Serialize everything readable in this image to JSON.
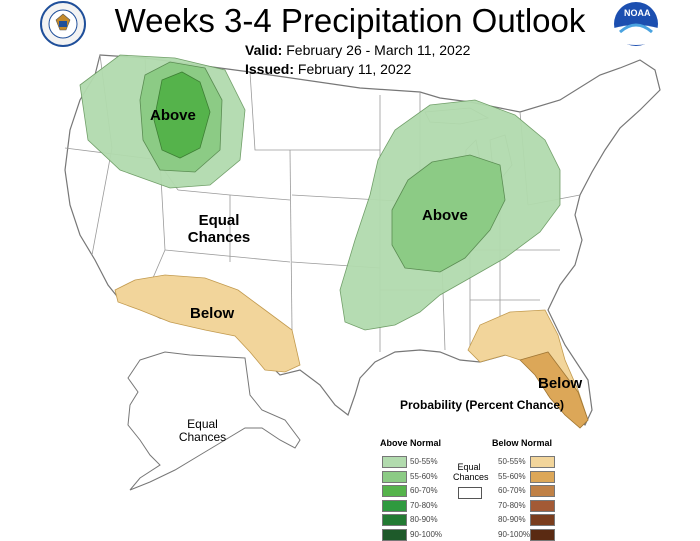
{
  "header": {
    "title": "Weeks 3-4 Precipitation Outlook",
    "valid_label": "Valid:",
    "valid_value": "February 26 - March 11, 2022",
    "issued_label": "Issued:",
    "issued_value": "February 11, 2022"
  },
  "logos": {
    "left": "department-of-commerce-seal-icon",
    "right_text": "NOAA"
  },
  "map_labels": {
    "above_nw": "Above",
    "above_mw": "Above",
    "equal_west_1": "Equal",
    "equal_west_2": "Chances",
    "below_sw": "Below",
    "below_se": "Below",
    "equal_ak_1": "Equal",
    "equal_ak_2": "Chances"
  },
  "legend": {
    "title": "Probability (Percent Chance)",
    "above_header": "Above Normal",
    "below_header": "Below Normal",
    "equal_1": "Equal",
    "equal_2": "Chances",
    "above": [
      {
        "label": "50-55%",
        "color": "#b2dbae"
      },
      {
        "label": "55-60%",
        "color": "#8ccb85"
      },
      {
        "label": "60-70%",
        "color": "#55b34b"
      },
      {
        "label": "70-80%",
        "color": "#2f9a3f"
      },
      {
        "label": "80-90%",
        "color": "#237a33"
      },
      {
        "label": "90-100%",
        "color": "#1e5a2a"
      }
    ],
    "below": [
      {
        "label": "50-55%",
        "color": "#f2d59b"
      },
      {
        "label": "55-60%",
        "color": "#dca758"
      },
      {
        "label": "60-70%",
        "color": "#c08146"
      },
      {
        "label": "70-80%",
        "color": "#a35a35"
      },
      {
        "label": "80-90%",
        "color": "#7a3d1d"
      },
      {
        "label": "90-100%",
        "color": "#5a2a12"
      }
    ]
  }
}
